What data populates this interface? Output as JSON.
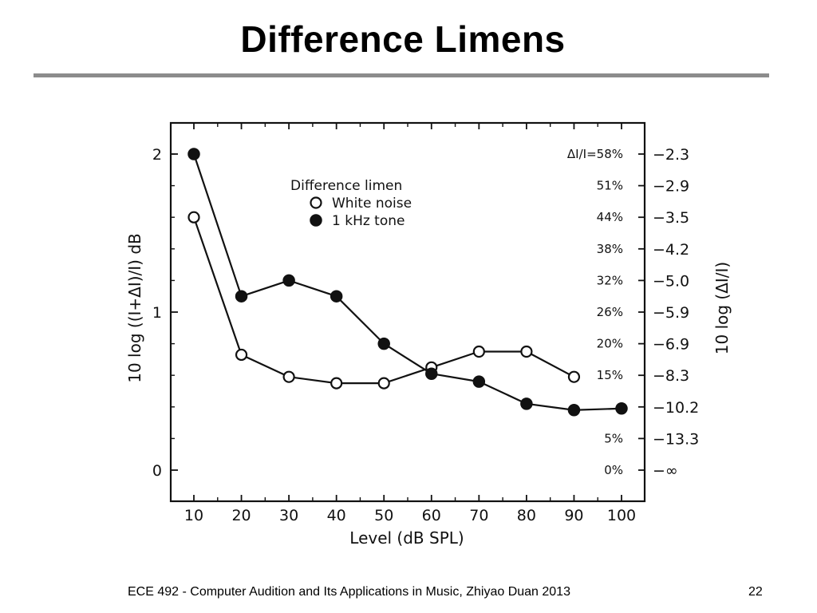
{
  "slide": {
    "title": "Difference Limens",
    "footer": "ECE 492 - Computer Audition and Its Applications in Music, Zhiyao Duan 2013",
    "page_number": "22"
  },
  "colors": {
    "rule": "#8c8c8c",
    "ink": "#111111"
  },
  "chart_data": {
    "type": "line",
    "xlabel": "Level (dB SPL)",
    "ylabel": "10 log ((I+ΔI)/I) dB",
    "y2label": "10 log (ΔI/I)",
    "x": [
      10,
      20,
      30,
      40,
      50,
      60,
      70,
      80,
      90,
      100
    ],
    "xlim": [
      6,
      106
    ],
    "ylim": [
      -0.2,
      2.2
    ],
    "x_ticks": [
      "10",
      "20",
      "30",
      "40",
      "50",
      "60",
      "70",
      "80",
      "90",
      "100"
    ],
    "y_ticks": [
      {
        "value": 0,
        "label": "0"
      },
      {
        "value": 1,
        "label": "1"
      },
      {
        "value": 2,
        "label": "2"
      }
    ],
    "right_ticks": [
      {
        "value": 2.0,
        "pct": "ΔI/I=58%",
        "db": "−2.3"
      },
      {
        "value": 1.8,
        "pct": "51%",
        "db": "−2.9"
      },
      {
        "value": 1.6,
        "pct": "44%",
        "db": "−3.5"
      },
      {
        "value": 1.4,
        "pct": "38%",
        "db": "−4.2"
      },
      {
        "value": 1.2,
        "pct": "32%",
        "db": "−5.0"
      },
      {
        "value": 1.0,
        "pct": "26%",
        "db": "−5.9"
      },
      {
        "value": 0.8,
        "pct": "20%",
        "db": "−6.9"
      },
      {
        "value": 0.6,
        "pct": "15%",
        "db": "−8.3"
      },
      {
        "value": 0.4,
        "pct": "",
        "db": "−10.2"
      },
      {
        "value": 0.2,
        "pct": "5%",
        "db": "−13.3"
      },
      {
        "value": 0.0,
        "pct": "0%",
        "db": "−∞"
      }
    ],
    "legend": {
      "title": "Difference limen",
      "placement": "top-center"
    },
    "series": [
      {
        "name": "White noise",
        "marker": "open-circle",
        "x": [
          10,
          20,
          30,
          40,
          50,
          60,
          70,
          80,
          90
        ],
        "values": [
          1.6,
          0.73,
          0.59,
          0.55,
          0.55,
          0.65,
          0.75,
          0.75,
          0.59
        ]
      },
      {
        "name": "1 kHz tone",
        "marker": "filled-circle",
        "x": [
          10,
          20,
          30,
          40,
          50,
          60,
          70,
          80,
          90,
          100
        ],
        "values": [
          2.0,
          1.1,
          1.2,
          1.1,
          0.8,
          0.61,
          0.56,
          0.42,
          0.38,
          0.39
        ]
      }
    ]
  }
}
